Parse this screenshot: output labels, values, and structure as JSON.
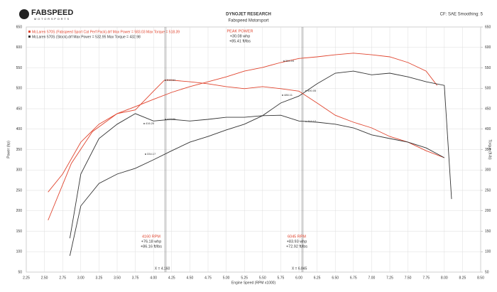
{
  "header": {
    "brand": "FABSPEED",
    "brand_sub": "MOTORSPORTS",
    "title": "DYNOJET RESEARCH",
    "subtitle": "Fabspeed Motorsport",
    "settings": "CF: SAE   Smoothing: 5"
  },
  "chart_data": {
    "type": "line",
    "legend": [
      "McLaren 570S (Fabspeed Sport Cat Perf Pack).drf Max Power = 583.03    Max Torque = 518.39",
      "McLaren 570S (Stock).drf Max Power = 532.95    Max Torque = 432.98"
    ],
    "xlabel": "Engine Speed (RPM x1000)",
    "ylabel": "Power (hp)",
    "y2label": "Torque (ft-lb)",
    "xlim": [
      2.25,
      8.5
    ],
    "xticks": [
      {
        "value": 2.25,
        "label": "2.25"
      },
      {
        "value": 2.5,
        "label": "2.50"
      },
      {
        "value": 2.75,
        "label": "2.75"
      },
      {
        "value": 3,
        "label": "3.00"
      },
      {
        "value": 3.25,
        "label": "3.25"
      },
      {
        "value": 3.5,
        "label": "3.50"
      },
      {
        "value": 3.75,
        "label": "3.75"
      },
      {
        "value": 4,
        "label": "4.00"
      },
      {
        "value": 4.25,
        "label": "4.25"
      },
      {
        "value": 4.5,
        "label": "4.50"
      },
      {
        "value": 4.75,
        "label": "4.75"
      },
      {
        "value": 5,
        "label": "5.00"
      },
      {
        "value": 5.25,
        "label": "5.25"
      },
      {
        "value": 5.5,
        "label": "5.50"
      },
      {
        "value": 5.75,
        "label": "5.75"
      },
      {
        "value": 6,
        "label": "6.00"
      },
      {
        "value": 6.25,
        "label": "6.25"
      },
      {
        "value": 6.5,
        "label": "6.50"
      },
      {
        "value": 6.75,
        "label": "6.75"
      },
      {
        "value": 7,
        "label": "7.00"
      },
      {
        "value": 7.25,
        "label": "7.25"
      },
      {
        "value": 7.5,
        "label": "7.50"
      },
      {
        "value": 7.75,
        "label": "7.75"
      },
      {
        "value": 8,
        "label": "8.00"
      },
      {
        "value": 8.25,
        "label": "8.25"
      },
      {
        "value": 8.5,
        "label": "8.50"
      }
    ],
    "ylim": [
      50,
      650
    ],
    "yticks": [
      50,
      100,
      150,
      200,
      250,
      300,
      350,
      400,
      450,
      500,
      550,
      600,
      650
    ],
    "y2lim": [
      50,
      650
    ],
    "y2ticks": [
      50,
      100,
      150,
      200,
      250,
      300,
      350,
      400,
      450,
      500,
      550,
      600,
      650
    ],
    "grid": true,
    "series": [
      {
        "name": "Fabspeed power",
        "color": "#e0452f",
        "x": [
          2.55,
          2.87,
          3.16,
          3.5,
          3.75,
          4,
          4.25,
          4.5,
          4.75,
          5,
          5.25,
          5.5,
          5.75,
          6,
          6.25,
          6.5,
          6.75,
          7,
          7.25,
          7.5,
          7.75,
          7.9
        ],
        "values": [
          177,
          316,
          394,
          438,
          455,
          473,
          490,
          504,
          516,
          528,
          542,
          551,
          563,
          573,
          577,
          582,
          586,
          582,
          577,
          563,
          542,
          507
        ]
      },
      {
        "name": "Stock power",
        "color": "#333333",
        "x": [
          2.85,
          3,
          3.25,
          3.5,
          3.75,
          4,
          4.25,
          4.5,
          4.75,
          5,
          5.25,
          5.5,
          5.75,
          6,
          6.25,
          6.5,
          6.75,
          7,
          7.25,
          7.5,
          7.75,
          8,
          8.1
        ],
        "values": [
          90,
          212,
          267,
          290,
          304,
          325,
          347,
          368,
          382,
          398,
          412,
          433,
          464,
          481,
          511,
          537,
          542,
          533,
          537,
          528,
          516,
          507,
          229
        ]
      },
      {
        "name": "Fabspeed torque",
        "color": "#e0452f",
        "axis": "y2",
        "x": [
          2.55,
          2.75,
          3,
          3.25,
          3.5,
          3.75,
          4,
          4.15,
          4.25,
          4.5,
          4.75,
          5,
          5.25,
          5.5,
          5.75,
          6,
          6.25,
          6.5,
          6.75,
          7,
          7.25,
          7.5,
          7.75,
          8
        ],
        "values": [
          246,
          290,
          368,
          412,
          438,
          447,
          493,
          520,
          520,
          516,
          511,
          504,
          499,
          504,
          499,
          493,
          464,
          434,
          417,
          403,
          382,
          368,
          347,
          330
        ]
      },
      {
        "name": "Stock torque",
        "color": "#333333",
        "axis": "y2",
        "x": [
          2.85,
          3,
          3.25,
          3.5,
          3.75,
          4,
          4.25,
          4.5,
          4.75,
          5,
          5.25,
          5.5,
          5.75,
          6,
          6.25,
          6.5,
          6.75,
          7,
          7.25,
          7.5,
          7.75,
          8
        ],
        "values": [
          133,
          290,
          377,
          412,
          438,
          420,
          424,
          420,
          424,
          429,
          429,
          433,
          434,
          420,
          417,
          412,
          403,
          386,
          377,
          368,
          354,
          330
        ]
      }
    ],
    "markers": [
      {
        "x": 4.16,
        "label": "X = 4.160"
      },
      {
        "x": 6.045,
        "label": "X = 6.045"
      }
    ],
    "annotations": [
      [
        "PEAK POWER",
        "+30.08 whp",
        "+85.41 ft/lbs"
      ],
      [
        "4160 RPM",
        "+76.18 whp",
        "+86.16 ft/lbs"
      ],
      [
        "6045 RPM",
        "+83.93 whp",
        "+72.92 ft/lbs"
      ]
    ],
    "point_labels": [
      "564.04",
      "518.64",
      "490.05",
      "486.11",
      "424.96",
      "416.20",
      "417.12",
      "334.17"
    ]
  }
}
